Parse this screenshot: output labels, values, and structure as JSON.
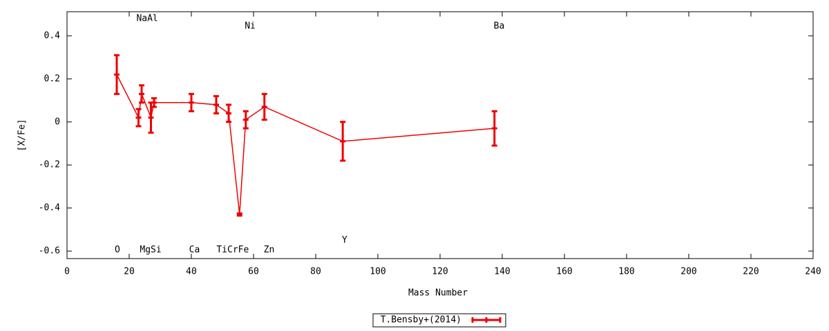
{
  "chart_data": {
    "type": "errorbar-line",
    "xlabel": "Mass Number",
    "ylabel": "[X/Fe]",
    "xlim": [
      0,
      240
    ],
    "xticks": [
      0,
      20,
      40,
      60,
      80,
      100,
      120,
      140,
      160,
      180,
      200,
      220,
      240
    ],
    "ylim": [
      -0.635,
      0.512
    ],
    "yticks": [
      -0.6,
      -0.4,
      -0.2,
      0,
      0.2,
      0.4
    ],
    "legend": "bottom",
    "series": [
      {
        "name": "T.Bensby+(2014)",
        "color": "#ee0000",
        "x": [
          16,
          23,
          24,
          27,
          28,
          40,
          48,
          52,
          55.5,
          57.5,
          63.5,
          88.7,
          137.5
        ],
        "values": [
          0.22,
          0.02,
          0.13,
          0.02,
          0.09,
          0.09,
          0.08,
          0.04,
          -0.43,
          0.01,
          0.07,
          -0.09,
          -0.03
        ],
        "errors": [
          0.09,
          0.04,
          0.04,
          0.07,
          0.02,
          0.04,
          0.04,
          0.04,
          0.005,
          0.04,
          0.06,
          0.09,
          0.08
        ]
      }
    ],
    "annotations": [
      {
        "text": "NaAl",
        "x": 25.8,
        "y": 0.48
      },
      {
        "text": "Ni",
        "x": 58.9,
        "y": 0.445
      },
      {
        "text": "Ba",
        "x": 139,
        "y": 0.445
      },
      {
        "text": "O",
        "x": 16.2,
        "y": -0.595
      },
      {
        "text": "MgSi",
        "x": 26.9,
        "y": -0.595
      },
      {
        "text": "Ca",
        "x": 41,
        "y": -0.595
      },
      {
        "text": "TiCrFe",
        "x": 53.3,
        "y": -0.595
      },
      {
        "text": "Zn",
        "x": 65,
        "y": -0.595
      },
      {
        "text": "Y",
        "x": 89.3,
        "y": -0.55
      }
    ]
  }
}
